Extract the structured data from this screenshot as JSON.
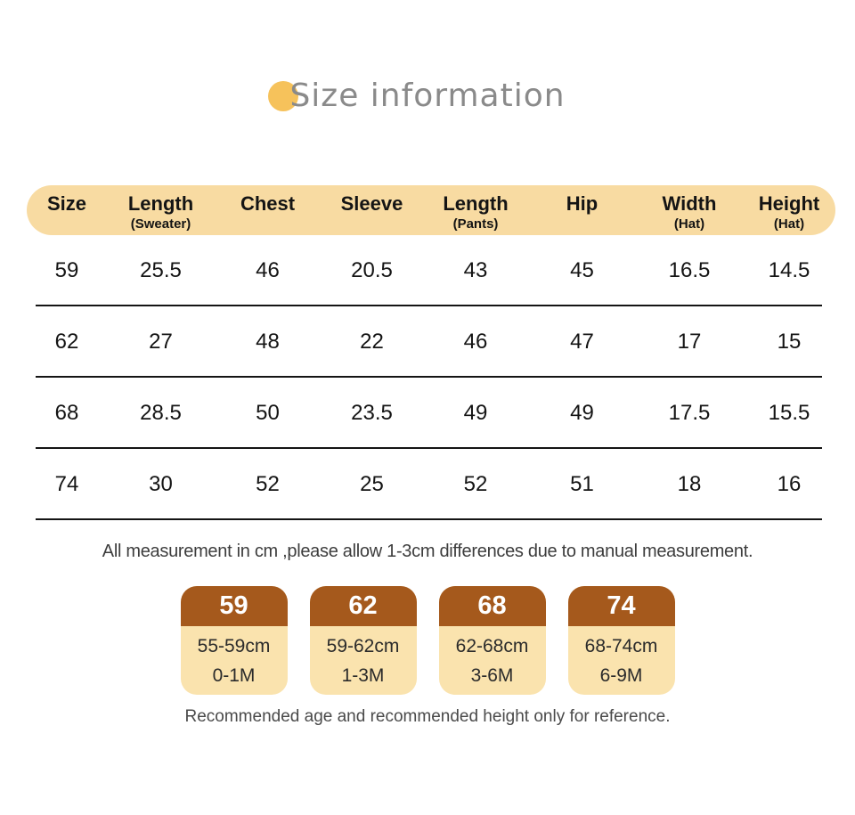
{
  "page": {
    "title": "Size information"
  },
  "theme": {
    "accent": "#F6C25B",
    "table_header_bg": "#F8DBA2",
    "card_header_bg": "#A5591C",
    "card_body_bg": "#FAE3AE"
  },
  "table": {
    "columns": [
      {
        "label": "Size",
        "sub": ""
      },
      {
        "label": "Length",
        "sub": "(Sweater)"
      },
      {
        "label": "Chest",
        "sub": ""
      },
      {
        "label": "Sleeve",
        "sub": ""
      },
      {
        "label": "Length",
        "sub": "(Pants)"
      },
      {
        "label": "Hip",
        "sub": ""
      },
      {
        "label": "Width",
        "sub": "(Hat)"
      },
      {
        "label": "Height",
        "sub": "(Hat)"
      }
    ],
    "rows": [
      [
        "59",
        "25.5",
        "46",
        "20.5",
        "43",
        "45",
        "16.5",
        "14.5"
      ],
      [
        "62",
        "27",
        "48",
        "22",
        "46",
        "47",
        "17",
        "15"
      ],
      [
        "68",
        "28.5",
        "50",
        "23.5",
        "49",
        "49",
        "17.5",
        "15.5"
      ],
      [
        "74",
        "30",
        "52",
        "25",
        "52",
        "51",
        "18",
        "16"
      ]
    ]
  },
  "notes": {
    "measurement": "All measurement in cm ,please allow 1-3cm differences due to manual measurement.",
    "reference": "Recommended age and recommended height only for reference."
  },
  "size_cards": {
    "cards": [
      {
        "size": "59",
        "height_range": "55-59cm",
        "age_range": "0-1M"
      },
      {
        "size": "62",
        "height_range": "59-62cm",
        "age_range": "1-3M"
      },
      {
        "size": "68",
        "height_range": "62-68cm",
        "age_range": "3-6M"
      },
      {
        "size": "74",
        "height_range": "68-74cm",
        "age_range": "6-9M"
      }
    ]
  }
}
